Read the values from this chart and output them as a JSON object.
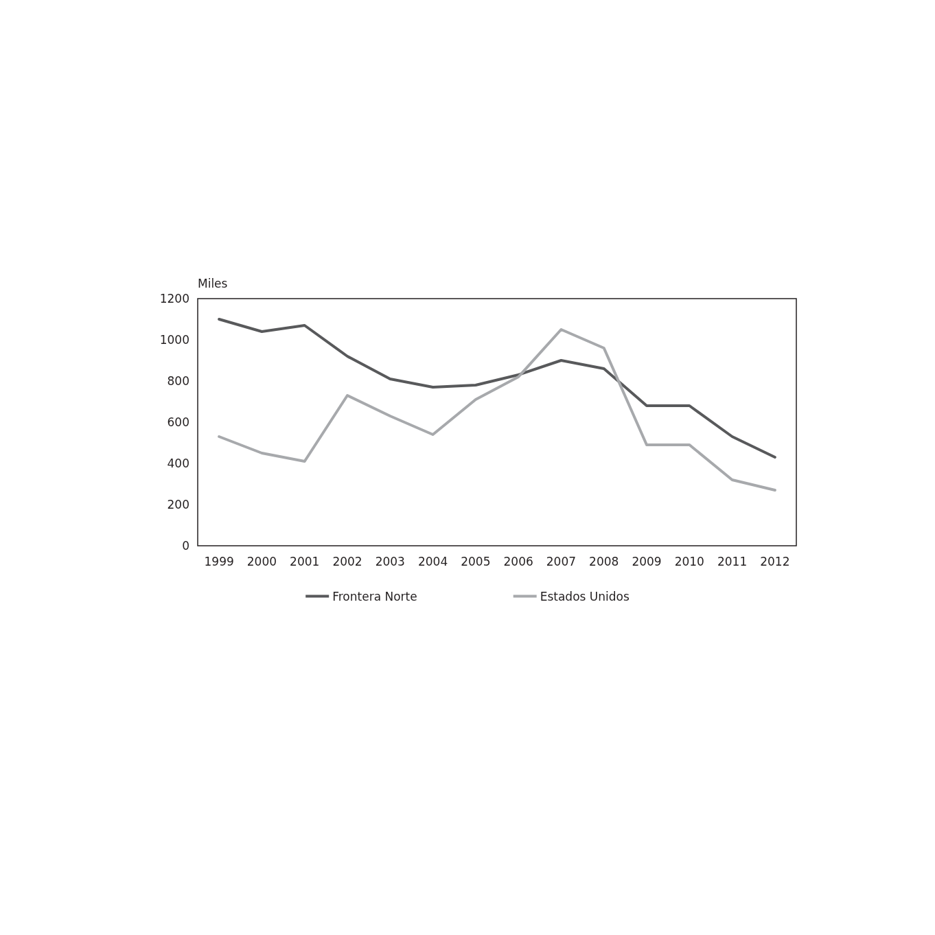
{
  "chart_data": {
    "type": "line",
    "ylabel": "Miles",
    "categories": [
      "1999",
      "2000",
      "2001",
      "2002",
      "2003",
      "2004",
      "2005",
      "2006",
      "2007",
      "2008",
      "2009",
      "2010",
      "2011",
      "2012"
    ],
    "series": [
      {
        "name": "Frontera Norte",
        "color": "#58595b",
        "values": [
          1100,
          1040,
          1070,
          920,
          810,
          770,
          780,
          830,
          900,
          860,
          680,
          680,
          530,
          430
        ]
      },
      {
        "name": "Estados Unidos",
        "color": "#a7a9ac",
        "values": [
          530,
          450,
          410,
          730,
          630,
          540,
          710,
          820,
          1050,
          960,
          490,
          490,
          320,
          270
        ]
      }
    ],
    "ylim": [
      0,
      1200
    ],
    "yticks": [
      0,
      200,
      400,
      600,
      800,
      1000,
      1200
    ],
    "grid": false,
    "legend": "bottom",
    "marker": "none",
    "line_style": "solid"
  }
}
